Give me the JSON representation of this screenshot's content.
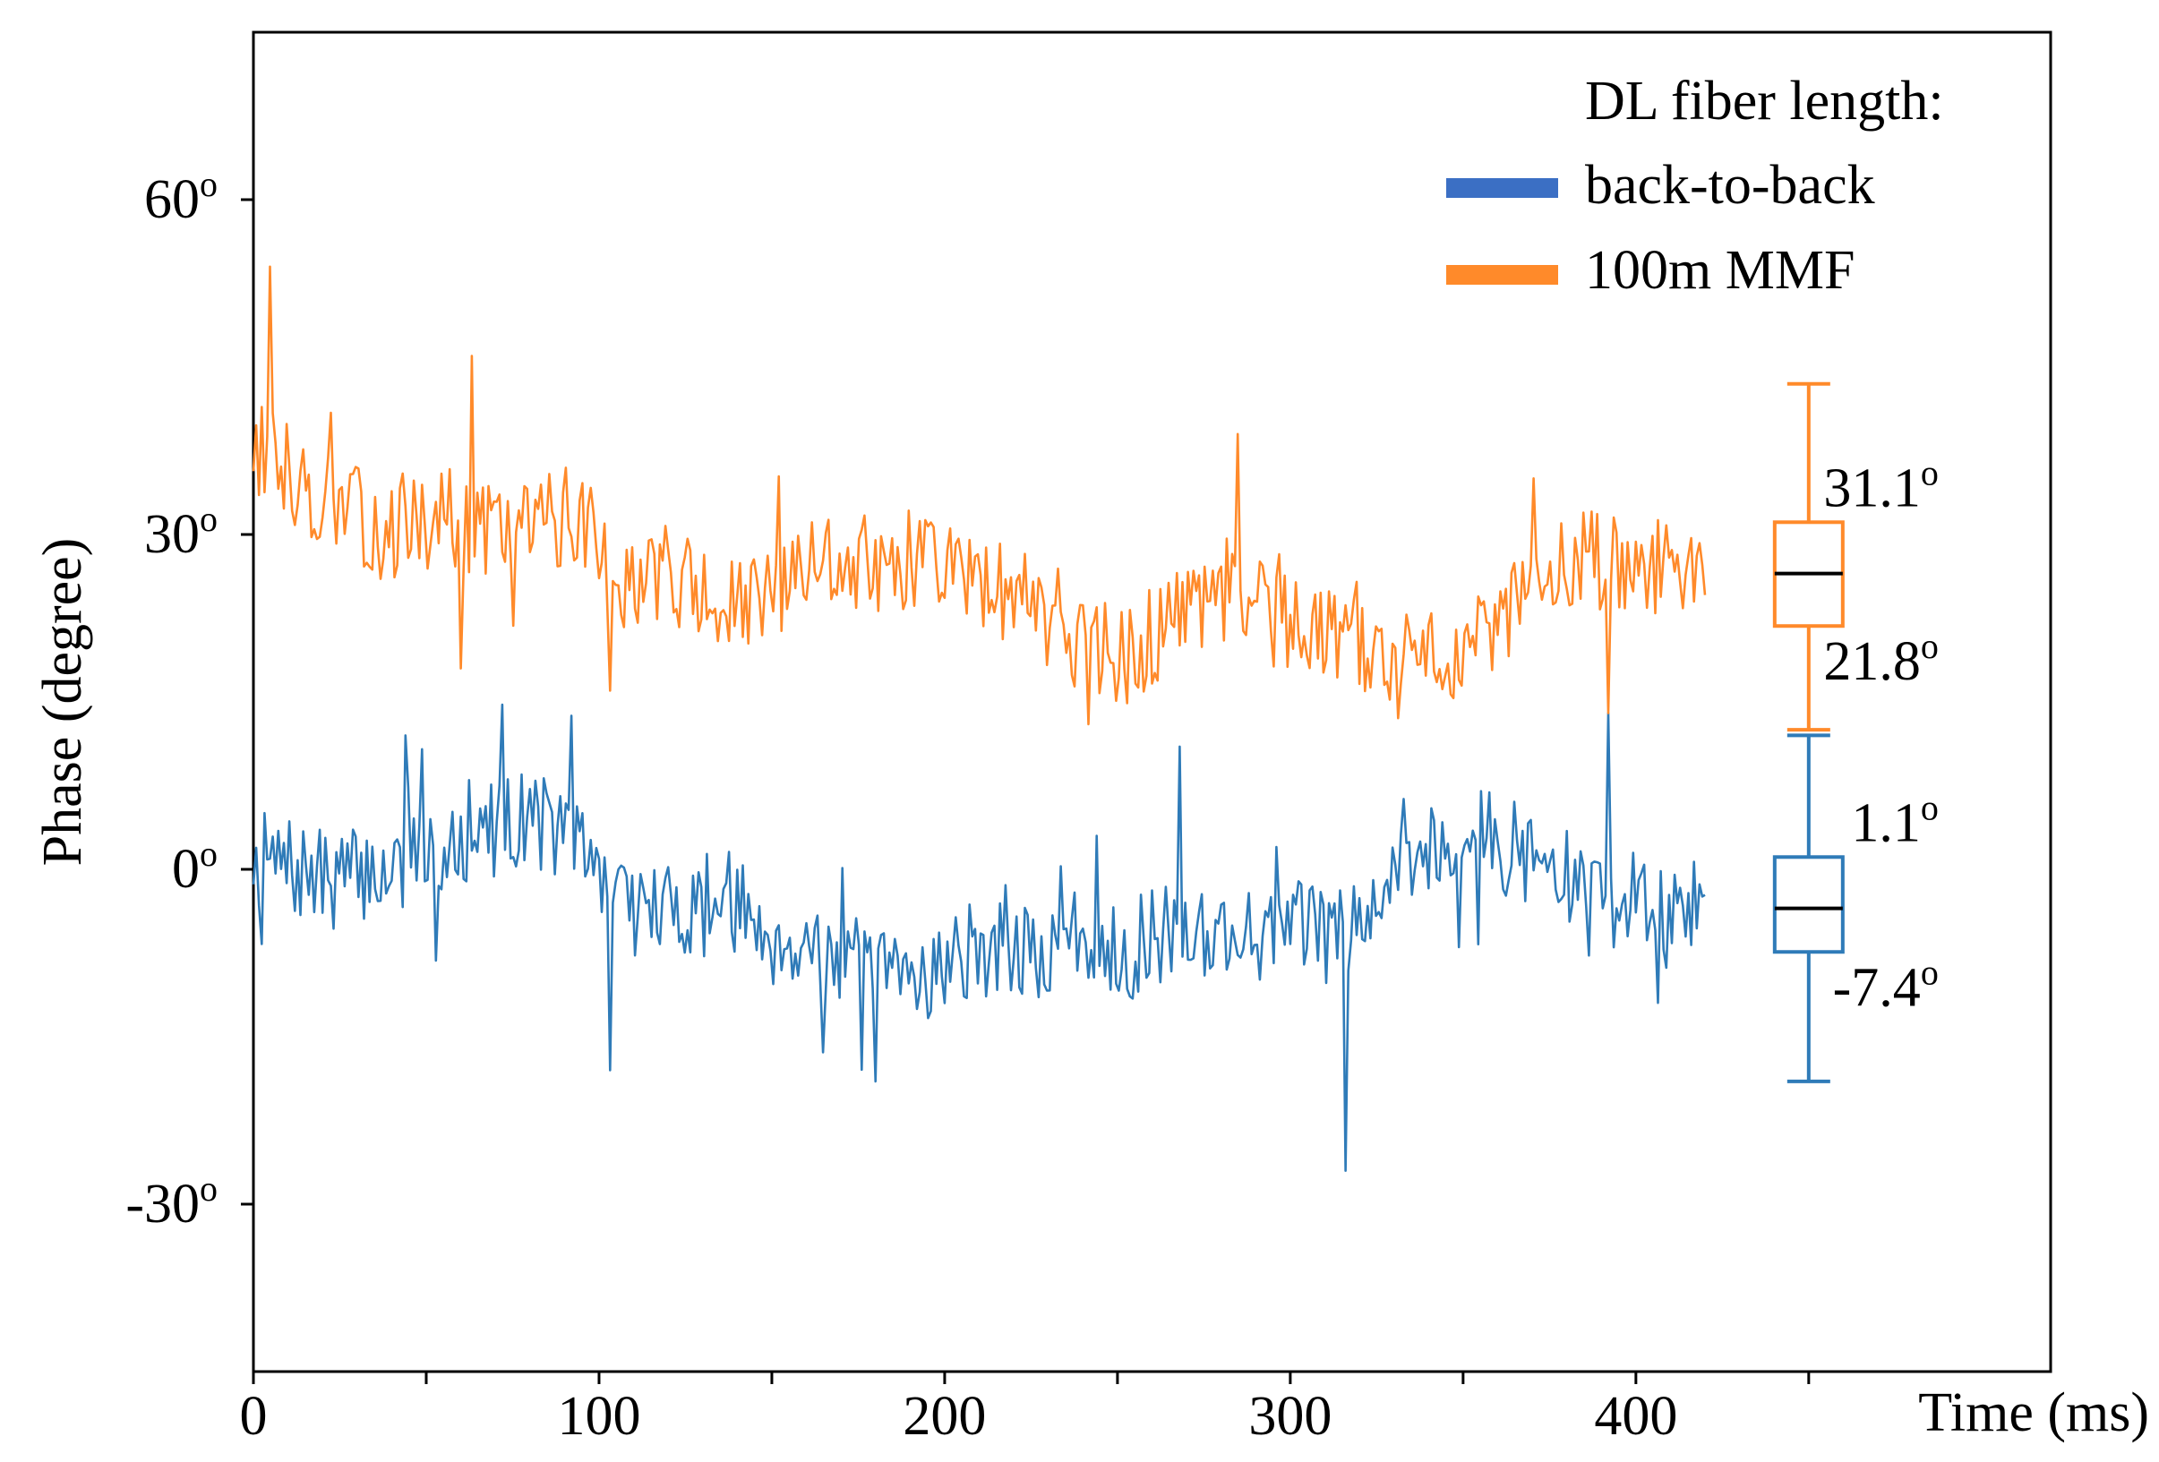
{
  "chart_data": {
    "type": "line",
    "title": "",
    "xlabel": "Time (ms)",
    "ylabel": "Phase (degree)",
    "xlim": [
      0,
      520
    ],
    "ylim": [
      -45,
      75
    ],
    "x_ticks": [
      0,
      100,
      200,
      300,
      400
    ],
    "x_tick_labels": [
      "0",
      "100",
      "200",
      "300",
      "400"
    ],
    "x_minor_ticks": [
      50,
      150,
      250,
      350,
      450
    ],
    "y_ticks": [
      -30,
      0,
      30,
      60
    ],
    "y_tick_labels": [
      {
        "num": "-30",
        "sup": "o"
      },
      {
        "num": "0",
        "sup": "o"
      },
      {
        "num": "30",
        "sup": "o"
      },
      {
        "num": "60",
        "sup": "o"
      }
    ],
    "legend": {
      "title": "DL fiber length:",
      "position": "top-right",
      "entries": [
        {
          "label": "back-to-back",
          "color": "#3b6fc4"
        },
        {
          "label": "100m MMF",
          "color": "#ff8a2a"
        }
      ]
    },
    "series": [
      {
        "name": "back-to-back",
        "color": "#2f7bb8",
        "x_start": 0,
        "x_end": 420,
        "anchors_x": [
          0,
          20,
          40,
          55,
          65,
          80,
          95,
          105,
          120,
          135,
          150,
          165,
          180,
          195,
          210,
          225,
          240,
          255,
          270,
          285,
          300,
          315,
          325,
          340,
          355,
          370,
          385,
          400,
          410,
          420
        ],
        "anchors_y": [
          1,
          -1,
          0,
          2,
          3,
          5,
          2,
          -3,
          -4,
          -2,
          -6,
          -7,
          -10,
          -9,
          -7,
          -8,
          -6,
          -7,
          -5,
          -6,
          -5,
          -6,
          -1,
          2,
          3,
          1,
          -2,
          -3,
          -5,
          -2
        ],
        "noise_amplitude": 4.5,
        "spikes": [
          [
            44,
            12
          ],
          [
            62,
            8
          ],
          [
            103,
            -18
          ],
          [
            180,
            -19
          ],
          [
            268,
            11
          ],
          [
            316,
            -27
          ],
          [
            392,
            14
          ],
          [
            329,
            -3
          ]
        ],
        "seed": 7
      },
      {
        "name": "100m MMF",
        "color": "#ff8a2a",
        "x_start": 0,
        "x_end": 420,
        "anchors_x": [
          0,
          20,
          40,
          55,
          65,
          80,
          95,
          105,
          120,
          135,
          150,
          165,
          180,
          195,
          210,
          225,
          240,
          255,
          270,
          285,
          300,
          315,
          325,
          340,
          355,
          370,
          385,
          400,
          410,
          420
        ],
        "anchors_y": [
          38,
          33,
          30,
          32,
          30,
          31,
          32,
          26,
          27,
          23,
          24,
          28,
          27,
          28,
          26,
          24,
          20,
          19,
          23,
          24,
          22,
          21,
          19,
          19,
          20,
          25,
          28,
          26,
          28,
          25
        ],
        "noise_amplitude": 4.5,
        "spikes": [
          [
            5,
            54
          ],
          [
            63,
            46
          ],
          [
            60,
            18
          ],
          [
            103,
            16
          ],
          [
            285,
            39
          ],
          [
            392,
            14
          ],
          [
            242,
            13
          ]
        ],
        "seed": 13
      }
    ],
    "boxplots": [
      {
        "name": "100m MMF",
        "color": "#ff8a2a",
        "x": 450,
        "whisker_low": 12.5,
        "q1": 21.8,
        "median": 26.5,
        "q3": 31.1,
        "whisker_high": 43.5,
        "label_q3": {
          "num": "31.1",
          "sup": "o"
        },
        "label_q1": {
          "num": "21.8",
          "sup": "o"
        }
      },
      {
        "name": "back-to-back",
        "color": "#2f7bb8",
        "x": 450,
        "whisker_low": -19,
        "q1": -7.4,
        "median": -3.5,
        "q3": 1.1,
        "whisker_high": 12,
        "label_q3": {
          "num": "1.1",
          "sup": "o"
        },
        "label_q1": {
          "num": "-7.4",
          "sup": "o"
        }
      }
    ]
  }
}
